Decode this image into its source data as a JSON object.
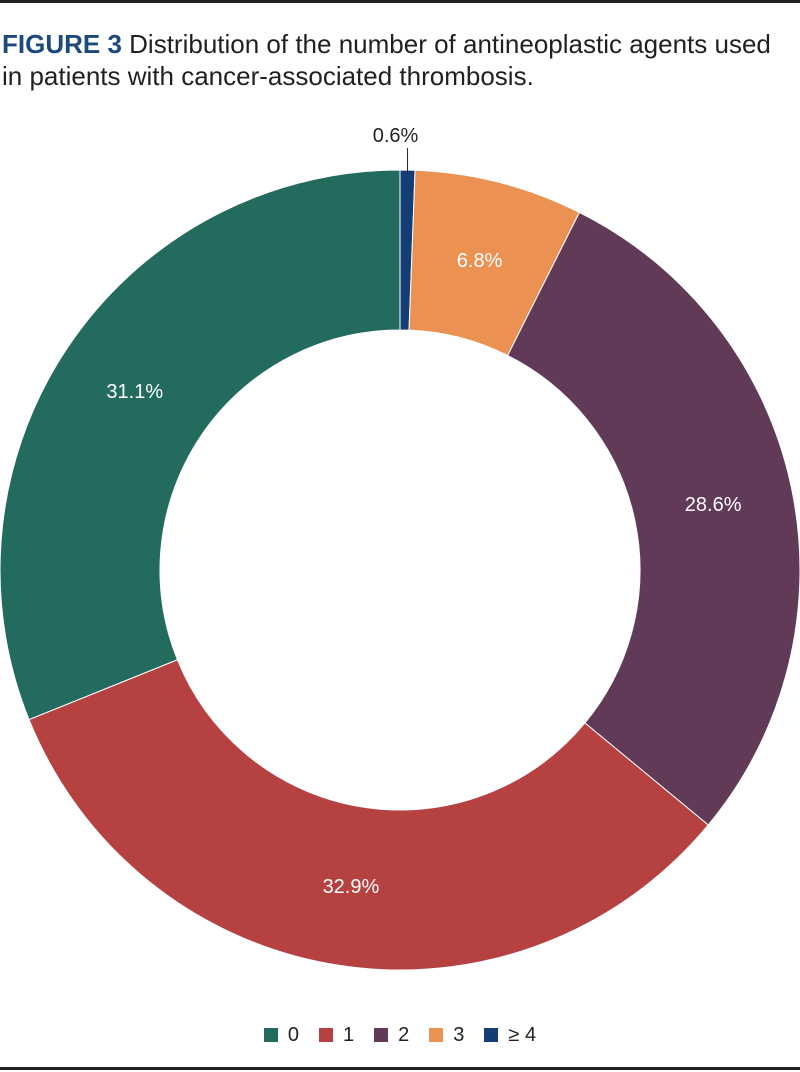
{
  "figure": {
    "label": "FIGURE 3",
    "caption": "Distribution of the number of antineoplastic agents used in patients with cancer-associated thrombosis."
  },
  "chart_data": {
    "type": "pie",
    "donut": true,
    "categories": [
      "0",
      "1",
      "2",
      "3",
      "≥ 4"
    ],
    "values": [
      31.1,
      32.9,
      28.6,
      6.8,
      0.6
    ],
    "data_labels": [
      "31.1%",
      "32.9%",
      "28.6%",
      "6.8%",
      "0.6%"
    ],
    "colors": [
      "#236b5f",
      "#b54141",
      "#603a56",
      "#eb9151",
      "#153d75"
    ],
    "label_colors": [
      "#ffffff",
      "#ffffff",
      "#ffffff",
      "#ffffff",
      "#231f20"
    ],
    "start": "12 o'clock",
    "direction": "clockwise",
    "legend_position": "bottom"
  }
}
